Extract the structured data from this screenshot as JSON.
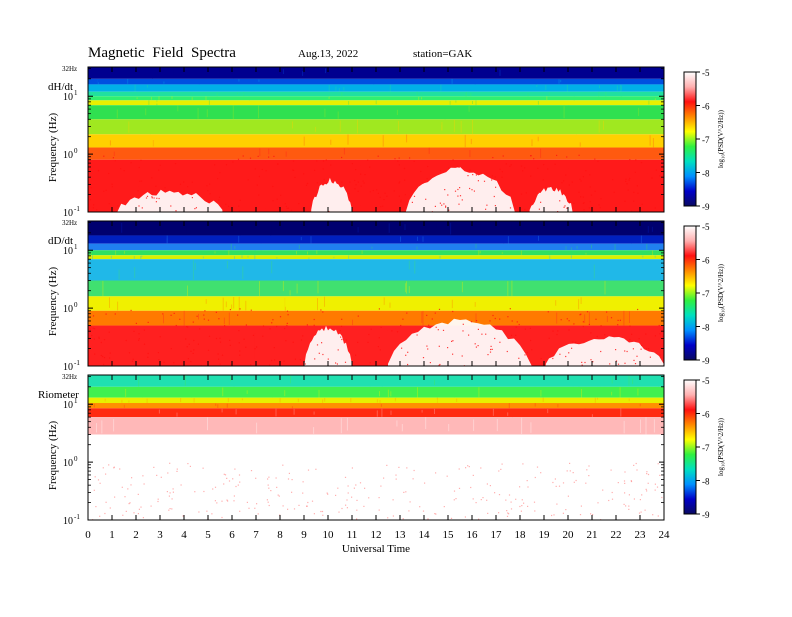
{
  "header": {
    "title": "Magnetic  Field  Spectra",
    "date": "Aug.13, 2022",
    "station": "station=GAK"
  },
  "colors": {
    "background": "#ffffff",
    "colormap": [
      "#0a0a60",
      "#0000c8",
      "#0090ff",
      "#00e0c0",
      "#30f040",
      "#ffff00",
      "#ff8800",
      "#ff1010",
      "#ffb0b0",
      "#ffffff"
    ]
  },
  "chart_data": [
    {
      "type": "heatmap",
      "panel_label": "dH/dt",
      "ylabel": "Frequency  (Hz)",
      "top_label": "32Hz",
      "y_ticks": [
        "10",
        "10",
        "10"
      ],
      "y_tick_exps": [
        "1",
        "0",
        "-1"
      ],
      "y_scale": "log",
      "ylim": [
        0.1,
        32
      ],
      "xlim": [
        0,
        24
      ],
      "colorbar": {
        "label": "log₁₀(PSD(V^2/Hz))",
        "ticks": [
          "-5",
          "-6",
          "-7",
          "-8",
          "-9"
        ],
        "range": [
          -9,
          -5
        ]
      },
      "bands": [
        {
          "from": 32,
          "to": 20,
          "color": "#00008f"
        },
        {
          "from": 20,
          "to": 16,
          "color": "#0050e0"
        },
        {
          "from": 16,
          "to": 12,
          "color": "#00b0e8"
        },
        {
          "from": 12,
          "to": 10,
          "color": "#20e0a0"
        },
        {
          "from": 10,
          "to": 8.5,
          "color": "#30f070"
        },
        {
          "from": 8.5,
          "to": 7.0,
          "color": "#e8f000"
        },
        {
          "from": 7.0,
          "to": 4.0,
          "color": "#30e050"
        },
        {
          "from": 4.0,
          "to": 2.2,
          "color": "#a0e820"
        },
        {
          "from": 2.2,
          "to": 1.3,
          "color": "#ffd000"
        },
        {
          "from": 1.3,
          "to": 0.8,
          "color": "#ff5a10"
        },
        {
          "from": 0.8,
          "to": 0.1,
          "color": "#ff1a1a"
        }
      ],
      "quiet_regions": [
        {
          "t0": 1.2,
          "t1": 5.6,
          "f_top": 0.22
        },
        {
          "t0": 9.3,
          "t1": 11.0,
          "f_top": 0.35
        },
        {
          "t0": 13.2,
          "t1": 17.8,
          "f_top": 0.55
        },
        {
          "t0": 18.4,
          "t1": 20.2,
          "f_top": 0.25
        }
      ]
    },
    {
      "type": "heatmap",
      "panel_label": "dD/dt",
      "ylabel": "Frequency  (Hz)",
      "top_label": "32Hz",
      "y_ticks": [
        "10",
        "10",
        "10"
      ],
      "y_tick_exps": [
        "1",
        "0",
        "-1"
      ],
      "y_scale": "log",
      "ylim": [
        0.1,
        32
      ],
      "xlim": [
        0,
        24
      ],
      "colorbar": {
        "label": "log₁₀(PSD(V^2/Hz))",
        "ticks": [
          "-5",
          "-6",
          "-7",
          "-8",
          "-9"
        ],
        "range": [
          -9,
          -5
        ]
      },
      "bands": [
        {
          "from": 32,
          "to": 18,
          "color": "#00006f"
        },
        {
          "from": 18,
          "to": 13,
          "color": "#0020c0"
        },
        {
          "from": 13,
          "to": 10,
          "color": "#2080f0"
        },
        {
          "from": 10,
          "to": 8.2,
          "color": "#30e060"
        },
        {
          "from": 8.2,
          "to": 7.0,
          "color": "#d8f000"
        },
        {
          "from": 7.0,
          "to": 3.0,
          "color": "#20b8e8"
        },
        {
          "from": 3.0,
          "to": 1.6,
          "color": "#40e070"
        },
        {
          "from": 1.6,
          "to": 0.9,
          "color": "#f0f000"
        },
        {
          "from": 0.9,
          "to": 0.5,
          "color": "#ff7a00"
        },
        {
          "from": 0.5,
          "to": 0.1,
          "color": "#ff2020"
        }
      ],
      "quiet_regions": [
        {
          "t0": 9.0,
          "t1": 11.0,
          "f_top": 0.45
        },
        {
          "t0": 12.5,
          "t1": 18.5,
          "f_top": 0.6
        },
        {
          "t0": 19.0,
          "t1": 24.0,
          "f_top": 0.3
        }
      ]
    },
    {
      "type": "heatmap",
      "panel_label": "Riometer",
      "ylabel": "Frequency  (Hz)",
      "top_label": "32Hz",
      "y_ticks": [
        "10",
        "10",
        "10"
      ],
      "y_tick_exps": [
        "1",
        "0",
        "-1"
      ],
      "y_scale": "log",
      "ylim": [
        0.1,
        32
      ],
      "xlim": [
        0,
        24
      ],
      "colorbar": {
        "label": "log₁₀(PSD(V^2/Hz))",
        "ticks": [
          "-5",
          "-6",
          "-7",
          "-8",
          "-9"
        ],
        "range": [
          -9,
          -5
        ]
      },
      "bands": [
        {
          "from": 32,
          "to": 20,
          "color": "#20e0b0"
        },
        {
          "from": 20,
          "to": 13,
          "color": "#40f050"
        },
        {
          "from": 13,
          "to": 10.5,
          "color": "#e8f000"
        },
        {
          "from": 10.5,
          "to": 8.5,
          "color": "#ff9000"
        },
        {
          "from": 8.5,
          "to": 6.0,
          "color": "#ff2a10"
        },
        {
          "from": 6.0,
          "to": 3.0,
          "color": "#ffb8b8"
        },
        {
          "from": 3.0,
          "to": 0.1,
          "color": "#ffffff"
        }
      ],
      "quiet_regions": []
    }
  ],
  "x_axis": {
    "label": "Universal  Time",
    "ticks": [
      "0",
      "1",
      "2",
      "3",
      "4",
      "5",
      "6",
      "7",
      "8",
      "9",
      "10",
      "11",
      "12",
      "13",
      "14",
      "15",
      "16",
      "17",
      "18",
      "19",
      "20",
      "21",
      "22",
      "23",
      "24"
    ]
  }
}
